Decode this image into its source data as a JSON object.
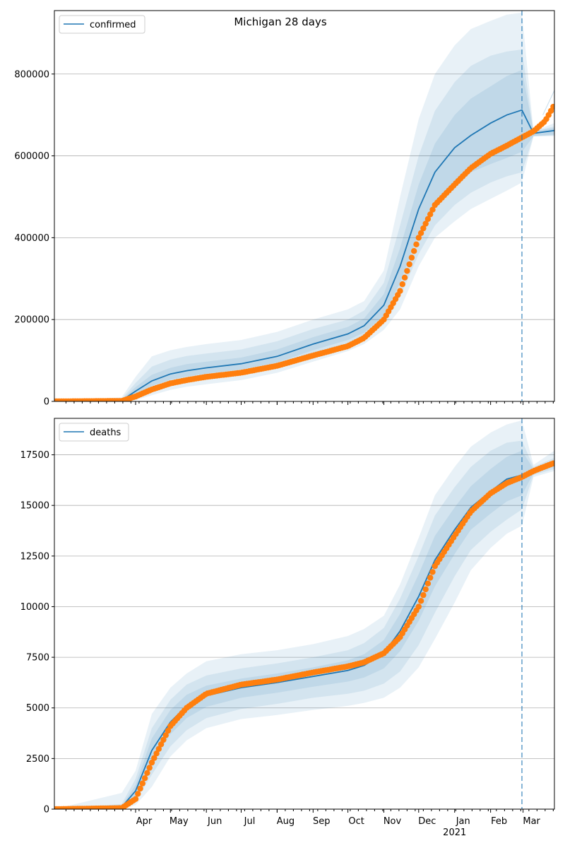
{
  "figure": {
    "title": "Michigan 28 days",
    "forecast_date": "2021-02-28"
  },
  "colors": {
    "model": "#1f77b4",
    "observed": "#ff7f0e",
    "grid": "#b0b0b0"
  },
  "x_axis": {
    "range": [
      "2020-01-22",
      "2021-03-28"
    ],
    "month_labels": [
      {
        "date": "2020-04-01",
        "label": "Apr"
      },
      {
        "date": "2020-05-01",
        "label": "May"
      },
      {
        "date": "2020-06-01",
        "label": "Jun"
      },
      {
        "date": "2020-07-01",
        "label": "Jul"
      },
      {
        "date": "2020-08-01",
        "label": "Aug"
      },
      {
        "date": "2020-09-01",
        "label": "Sep"
      },
      {
        "date": "2020-10-01",
        "label": "Oct"
      },
      {
        "date": "2020-11-01",
        "label": "Nov"
      },
      {
        "date": "2020-12-01",
        "label": "Dec"
      },
      {
        "date": "2021-01-01",
        "label": "Jan"
      },
      {
        "date": "2021-02-01",
        "label": "Feb"
      },
      {
        "date": "2021-03-01",
        "label": "Mar"
      }
    ],
    "year_label": {
      "date": "2021-01-01",
      "label": "2021"
    }
  },
  "chart_data": [
    {
      "type": "line",
      "legend": "confirmed",
      "legend_position": "upper-left",
      "ylim": [
        0,
        955000
      ],
      "yticks": [
        0,
        200000,
        400000,
        600000,
        800000
      ],
      "grid": true,
      "model": {
        "x": [
          "2020-01-22",
          "2020-03-20",
          "2020-04-01",
          "2020-04-15",
          "2020-05-01",
          "2020-05-15",
          "2020-06-01",
          "2020-07-01",
          "2020-08-01",
          "2020-09-01",
          "2020-10-01",
          "2020-10-15",
          "2020-11-01",
          "2020-11-15",
          "2020-12-01",
          "2020-12-15",
          "2021-01-01",
          "2021-01-15",
          "2021-02-01",
          "2021-02-15",
          "2021-02-28",
          "2021-03-10",
          "2021-03-28"
        ],
        "y": [
          0,
          2000,
          25000,
          50000,
          67000,
          75000,
          82000,
          92000,
          110000,
          140000,
          165000,
          185000,
          235000,
          330000,
          470000,
          560000,
          620000,
          650000,
          680000,
          700000,
          712000,
          655000,
          662000
        ],
        "bands": [
          {
            "lower": [
              0,
              0,
              15000,
              38000,
              53000,
              61000,
              68000,
              78000,
              95000,
              125000,
              150000,
              168000,
              210000,
              290000,
              410000,
              480000,
              530000,
              560000,
              580000,
              595000,
              610000,
              648000,
              652000
            ],
            "upper": [
              0,
              4000,
              35000,
              65000,
              82000,
              91000,
              97000,
              107000,
              127000,
              157000,
              182000,
              203000,
              262000,
              375000,
              530000,
              630000,
              700000,
              740000,
              770000,
              795000,
              810000,
              660000,
              668000
            ]
          },
          {
            "lower": [
              0,
              0,
              8000,
              25000,
              40000,
              48000,
              55000,
              64000,
              82000,
              110000,
              136000,
              153000,
              190000,
              255000,
              360000,
              430000,
              480000,
              510000,
              535000,
              550000,
              560000,
              648000,
              650000
            ],
            "upper": [
              0,
              6000,
              45000,
              85000,
              102000,
              111000,
              117000,
              127000,
              147000,
              177000,
              200000,
              222000,
              290000,
              430000,
              600000,
              710000,
              780000,
              820000,
              845000,
              855000,
              860000,
              660000,
              672000
            ]
          },
          {
            "lower": [
              0,
              0,
              3000,
              15000,
              28000,
              36000,
              42000,
              52000,
              70000,
              97000,
              123000,
              140000,
              175000,
              225000,
              330000,
              400000,
              440000,
              470000,
              495000,
              515000,
              535000,
              648000,
              648000
            ],
            "upper": [
              0,
              10000,
              60000,
              110000,
              125000,
              133000,
              140000,
              150000,
              170000,
              200000,
              225000,
              245000,
              320000,
              500000,
              690000,
              800000,
              870000,
              910000,
              930000,
              945000,
              950000,
              660000,
              680000
            ]
          }
        ]
      },
      "observed": {
        "x": [
          "2020-01-22",
          "2020-03-20",
          "2020-04-01",
          "2020-04-15",
          "2020-05-01",
          "2020-05-15",
          "2020-06-01",
          "2020-07-01",
          "2020-08-01",
          "2020-09-01",
          "2020-10-01",
          "2020-10-15",
          "2020-11-01",
          "2020-11-15",
          "2020-12-01",
          "2020-12-15",
          "2021-01-01",
          "2021-01-15",
          "2021-02-01",
          "2021-02-15",
          "2021-02-28",
          "2021-03-10",
          "2021-03-20",
          "2021-03-28"
        ],
        "y": [
          0,
          1000,
          12000,
          29000,
          44000,
          52000,
          60000,
          70000,
          87000,
          112000,
          135000,
          155000,
          200000,
          270000,
          400000,
          480000,
          530000,
          570000,
          605000,
          625000,
          645000,
          660000,
          685000,
          725000
        ]
      },
      "observed_upper": {
        "x": [
          "2021-03-18",
          "2021-03-28"
        ],
        "y": [
          700000,
          760000
        ]
      }
    },
    {
      "type": "line",
      "legend": "deaths",
      "legend_position": "upper-left",
      "ylim": [
        0,
        19300
      ],
      "yticks": [
        0,
        2500,
        5000,
        7500,
        10000,
        12500,
        15000,
        17500
      ],
      "grid": true,
      "model": {
        "x": [
          "2020-01-22",
          "2020-03-20",
          "2020-04-01",
          "2020-04-15",
          "2020-05-01",
          "2020-05-15",
          "2020-06-01",
          "2020-07-01",
          "2020-08-01",
          "2020-09-01",
          "2020-10-01",
          "2020-10-15",
          "2020-11-01",
          "2020-11-15",
          "2020-12-01",
          "2020-12-15",
          "2021-01-01",
          "2021-01-15",
          "2021-02-01",
          "2021-02-15",
          "2021-02-28",
          "2021-03-10",
          "2021-03-28"
        ],
        "y": [
          0,
          100,
          900,
          2900,
          4300,
          5100,
          5600,
          6000,
          6250,
          6550,
          6850,
          7100,
          7700,
          8800,
          10500,
          12300,
          13800,
          14900,
          15700,
          16300,
          16500,
          16700,
          17000
        ],
        "bands": [
          {
            "lower": [
              0,
              50,
              600,
              2300,
              3700,
              4500,
              5050,
              5500,
              5750,
              6050,
              6300,
              6500,
              6950,
              7800,
              9300,
              11000,
              12600,
              13800,
              14600,
              15200,
              15500,
              16600,
              16900
            ],
            "upper": [
              0,
              150,
              1200,
              3500,
              4900,
              5650,
              6100,
              6450,
              6700,
              7000,
              7350,
              7650,
              8350,
              9650,
              11600,
              13500,
              14900,
              15950,
              16800,
              17400,
              17700,
              16800,
              17150
            ]
          },
          {
            "lower": [
              0,
              20,
              400,
              1700,
              3100,
              3900,
              4500,
              4950,
              5200,
              5500,
              5700,
              5850,
              6200,
              6800,
              8100,
              9700,
              11500,
              12800,
              13700,
              14300,
              14800,
              16500,
              16800
            ],
            "upper": [
              0,
              250,
              1500,
              4000,
              5400,
              6150,
              6600,
              6950,
              7200,
              7500,
              7850,
              8200,
              8950,
              10400,
              12500,
              14500,
              15900,
              16900,
              17700,
              18100,
              18200,
              16900,
              17350
            ]
          },
          {
            "lower": [
              0,
              0,
              200,
              1100,
              2600,
              3400,
              4000,
              4450,
              4650,
              4900,
              5100,
              5250,
              5500,
              6000,
              7000,
              8400,
              10200,
              11800,
              12900,
              13600,
              14000,
              16400,
              16700
            ],
            "upper": [
              0,
              800,
              1900,
              4700,
              6000,
              6700,
              7300,
              7650,
              7850,
              8150,
              8550,
              8900,
              9550,
              11100,
              13400,
              15500,
              16900,
              17900,
              18600,
              19000,
              19200,
              17000,
              17700
            ]
          }
        ]
      },
      "observed": {
        "x": [
          "2020-01-22",
          "2020-03-20",
          "2020-04-01",
          "2020-04-15",
          "2020-05-01",
          "2020-05-15",
          "2020-06-01",
          "2020-07-01",
          "2020-08-01",
          "2020-09-01",
          "2020-10-01",
          "2020-10-15",
          "2020-11-01",
          "2020-11-15",
          "2020-12-01",
          "2020-12-15",
          "2021-01-01",
          "2021-01-15",
          "2021-02-01",
          "2021-02-15",
          "2021-02-28",
          "2021-03-10",
          "2021-03-28"
        ],
        "y": [
          0,
          50,
          500,
          2300,
          4100,
          5000,
          5700,
          6150,
          6400,
          6750,
          7050,
          7250,
          7700,
          8500,
          10000,
          12000,
          13500,
          14700,
          15600,
          16100,
          16400,
          16700,
          17100
        ]
      }
    }
  ]
}
